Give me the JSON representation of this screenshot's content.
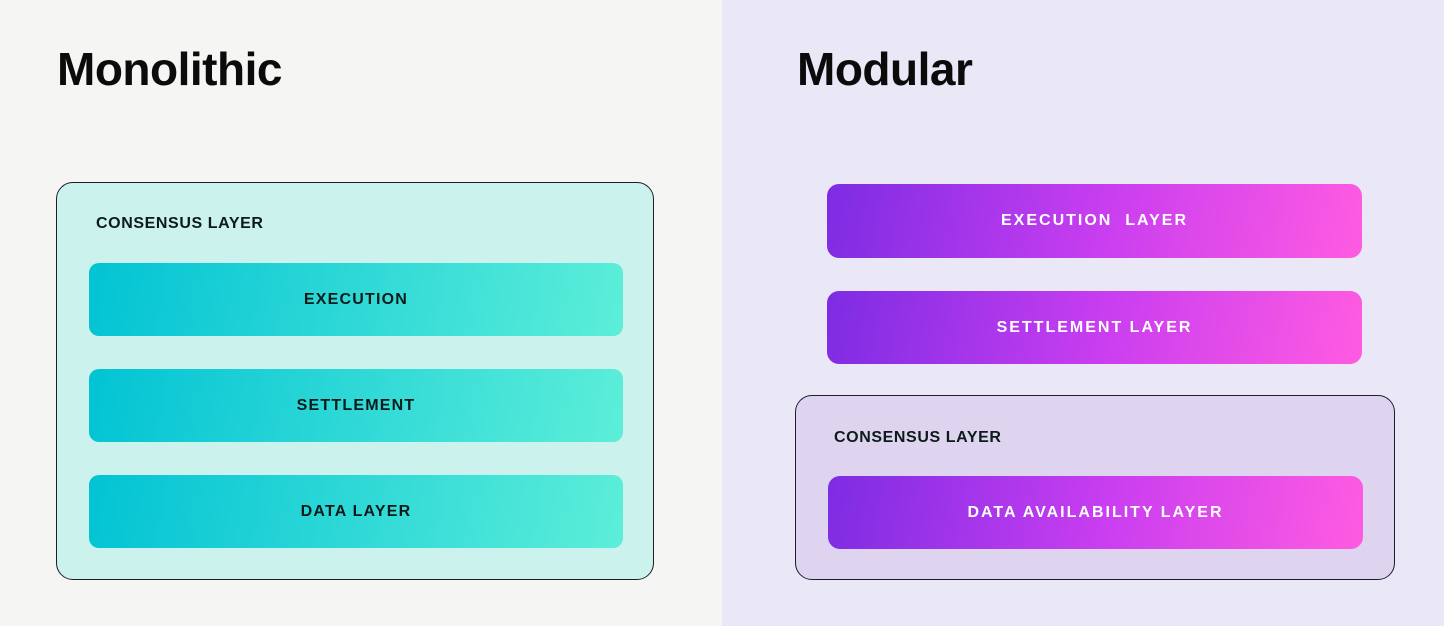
{
  "colors": {
    "left_bg": "#f5f5f4",
    "right_bg": "#eae7f7",
    "mint_box_bg": "#cbf2ec",
    "lavender_box_bg": "#ded4f0",
    "teal_gradient": [
      "#02c3d4",
      "#5ceed9"
    ],
    "purple_gradient": [
      "#7d2ce3",
      "#c93ef0",
      "#ff5be1"
    ],
    "box_border": "#1d1d2b",
    "title_color": "#0b0b0b",
    "dark_text": "#0c1a1a",
    "light_text": "#ffffff"
  },
  "monolithic": {
    "title": "Monolithic",
    "consensus_box": {
      "label": "CONSENSUS LAYER",
      "bars": [
        {
          "label": "EXECUTION"
        },
        {
          "label": "SETTLEMENT"
        },
        {
          "label": "DATA LAYER"
        }
      ]
    }
  },
  "modular": {
    "title": "Modular",
    "bars": [
      {
        "label": "EXECUTION  LAYER"
      },
      {
        "label": "SETTLEMENT LAYER"
      }
    ],
    "consensus_box": {
      "label": "CONSENSUS LAYER",
      "bars": [
        {
          "label": "DATA AVAILABILITY LAYER"
        }
      ]
    }
  }
}
